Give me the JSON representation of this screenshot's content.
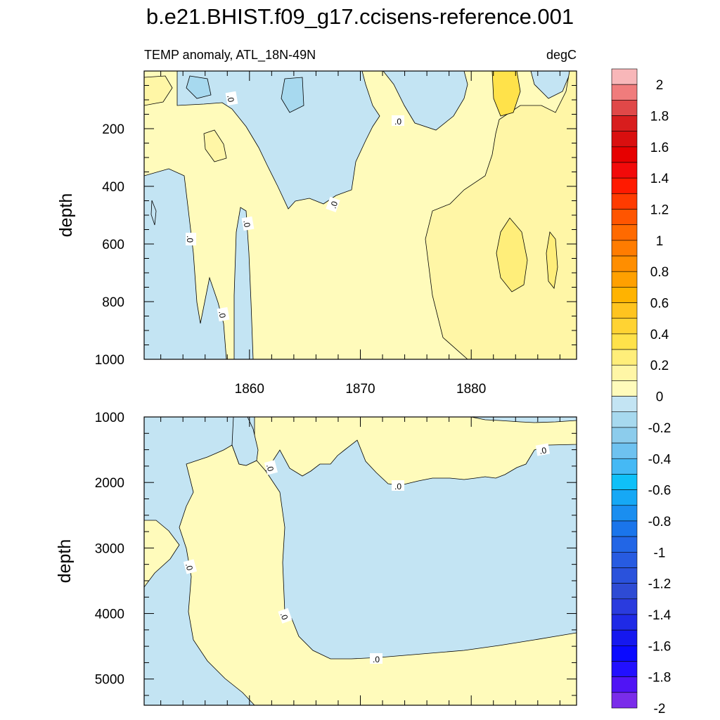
{
  "chart_data": [
    {
      "type": "contour",
      "title": "b.e21.BHIST.f09_g17.ccisens-reference.001",
      "left_subtitle": "TEMP anomaly, ATL_18N-49N",
      "right_subtitle": "degC",
      "ylabel": "depth",
      "xlim": [
        1850.5,
        1889.5
      ],
      "ylim": [
        0,
        1000
      ],
      "y_reversed": true,
      "xticks": [
        1860,
        1870,
        1880
      ],
      "yticks": [
        200,
        400,
        600,
        800,
        1000
      ],
      "contour_label": ".0",
      "fill_levels": {
        "negative": "-0.1 to 0",
        "positive": "0 to 0.1",
        "positive_2": "0.1 to 0.2",
        "positive_3": "0.2 to 0.3"
      }
    },
    {
      "type": "contour",
      "ylabel": "depth",
      "xlim": [
        1850.5,
        1889.5
      ],
      "ylim": [
        1000,
        5400
      ],
      "y_reversed": true,
      "xticks": [
        1860,
        1870,
        1880
      ],
      "yticks": [
        1000,
        2000,
        3000,
        4000,
        5000
      ],
      "contour_label": ".0"
    }
  ],
  "colorbar": {
    "labels": [
      "2",
      "1.8",
      "1.6",
      "1.4",
      "1.2",
      "1",
      "0.8",
      "0.6",
      "0.4",
      "0.2",
      "0",
      "-0.2",
      "-0.4",
      "-0.6",
      "-0.8",
      "-1",
      "-1.2",
      "-1.4",
      "-1.6",
      "-1.8",
      "-2"
    ],
    "colors": [
      "#f8b7b9",
      "#f07c7c",
      "#e04848",
      "#d81d1d",
      "#d90f0f",
      "#e60000",
      "#f20a0a",
      "#ff1a00",
      "#ff3b00",
      "#ff5500",
      "#ff6a00",
      "#ff7c00",
      "#ff8e00",
      "#ffa000",
      "#ffb300",
      "#ffc41f",
      "#ffd333",
      "#ffe24a",
      "#ffee7a",
      "#fff6a6",
      "#fffbbb",
      "#c3e4f3",
      "#a7d9ef",
      "#8cccec",
      "#6ec2f0",
      "#45b9f5",
      "#0fc0f8",
      "#16a8f5",
      "#1a8ef0",
      "#1a75eb",
      "#2266e6",
      "#275be1",
      "#2a52dc",
      "#2e4bd4",
      "#2a3bde",
      "#1f2ae6",
      "#1518ef",
      "#0a0aff",
      "#2210ff",
      "#5014f5",
      "#7a2cea"
    ]
  },
  "colors": {
    "neg": "#c3e4f3",
    "neg2": "#a7d9ef",
    "pos": "#fffbbb",
    "pos2": "#fff6a6",
    "pos3": "#ffee7a",
    "pos4": "#ffe24a"
  }
}
